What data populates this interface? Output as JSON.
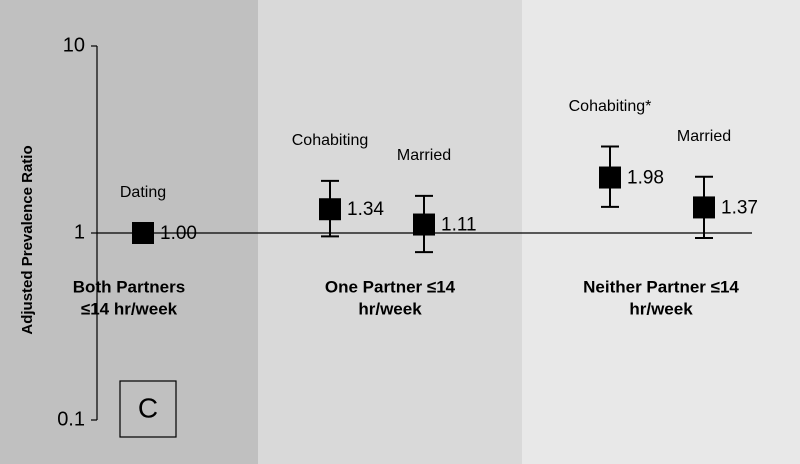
{
  "chart_data": {
    "type": "errorbar",
    "ylabel": "Adjusted Prevalence Ratio",
    "log_scale": true,
    "ylim": [
      0.1,
      10
    ],
    "yticks": [
      0.1,
      1,
      10
    ],
    "reference_line": 1,
    "panel_label": "C",
    "marker_color": "#000000",
    "groups": [
      {
        "label": [
          "Both Partners",
          "≤14 hr/week"
        ],
        "color": "#c0c0c0",
        "points": [
          {
            "name": "Dating",
            "value": 1,
            "value_label": "1.00",
            "lower": null,
            "upper": null
          }
        ]
      },
      {
        "label": [
          "One Partner ≤14",
          "hr/week"
        ],
        "color": "#d9d9d9",
        "points": [
          {
            "name": "Cohabiting",
            "value": 1.34,
            "lower": 0.96,
            "upper": 1.9
          },
          {
            "name": "Married",
            "value": 1.11,
            "lower": 0.79,
            "upper": 1.58
          }
        ]
      },
      {
        "label": [
          "Neither Partner ≤14",
          "hr/week"
        ],
        "color": "#e8e8e8",
        "points": [
          {
            "name": "Cohabiting*",
            "value": 1.98,
            "lower": 1.38,
            "upper": 2.9
          },
          {
            "name": "Married",
            "value": 1.37,
            "lower": 0.94,
            "upper": 2.0
          }
        ]
      }
    ]
  }
}
